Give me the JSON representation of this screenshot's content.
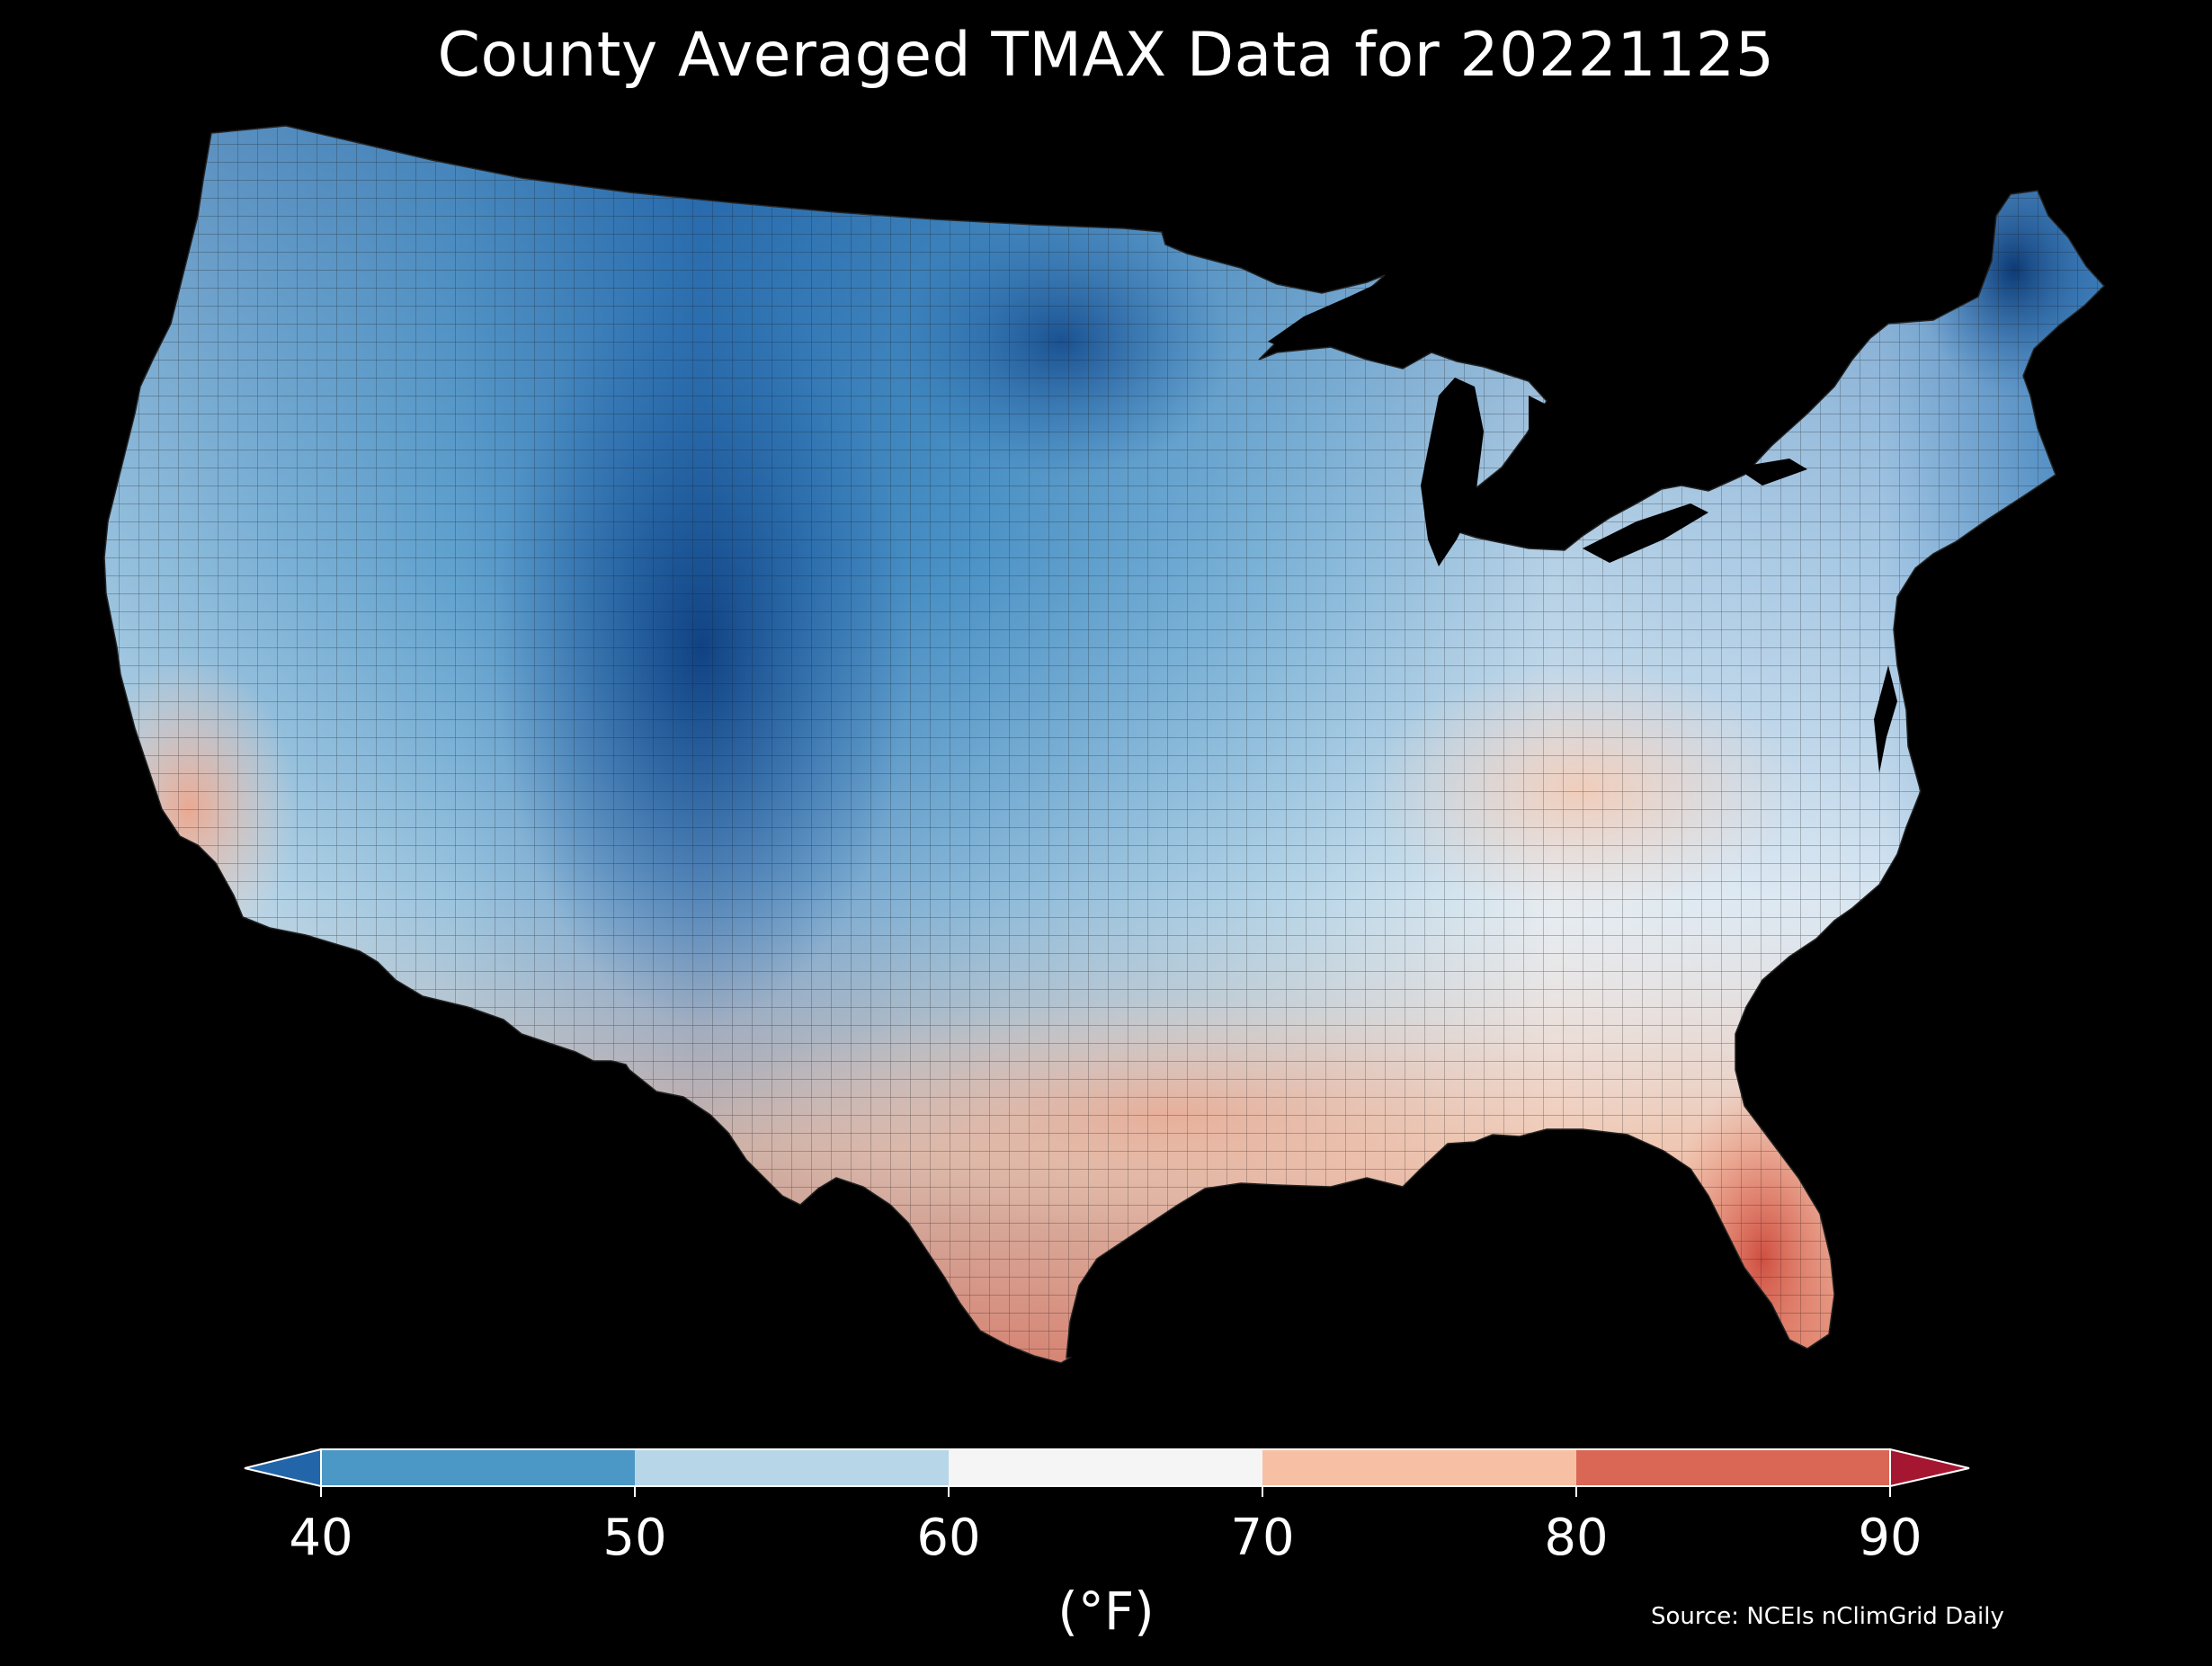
{
  "title": "County Averaged TMAX Data for 20221125",
  "colorbar": {
    "ticks": [
      "40",
      "50",
      "60",
      "70",
      "80",
      "90"
    ],
    "bins": [
      {
        "from": 40,
        "to": 50,
        "color": "#4b98c6"
      },
      {
        "from": 50,
        "to": 60,
        "color": "#b7d6e8"
      },
      {
        "from": 60,
        "to": 70,
        "color": "#f5f5f5"
      },
      {
        "from": 70,
        "to": 80,
        "color": "#f7c0a4"
      },
      {
        "from": 80,
        "to": 90,
        "color": "#da6755"
      }
    ],
    "under_color": "#2266a9",
    "over_color": "#a51731",
    "extend": "both",
    "unit_label": "(°F)"
  },
  "source": "Source: NCEIs nClimGrid Daily",
  "map": {
    "region": "contiguous United States, county level",
    "background": "#000000",
    "county_outlines": true
  }
}
